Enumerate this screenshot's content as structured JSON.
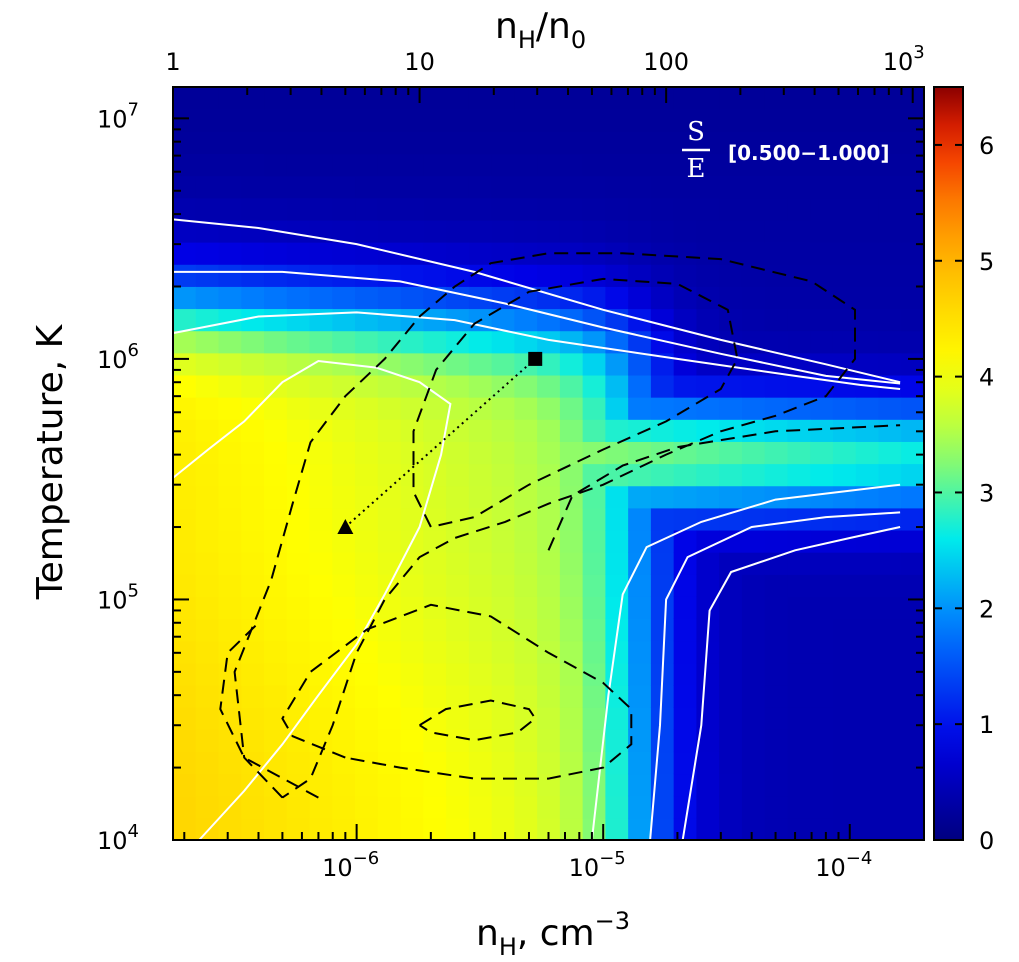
{
  "chart_data": {
    "type": "heatmap",
    "title": "",
    "xlabel_base": "n",
    "xlabel_sub": "H",
    "xlabel_tail": ",  cm",
    "xlabel_sup": "−3",
    "ylabel": "Temperature, K",
    "top_label": {
      "a": "n",
      "a_sub": "H",
      "slash": "/",
      "b": "n",
      "b_sub": "0"
    },
    "panel_label": {
      "num": "S",
      "den": "E",
      "range": "[0.500−1.000]"
    },
    "x_scale": "log",
    "y_scale": "log",
    "xlim": [
      1.8e-07,
      0.0002
    ],
    "ylim": [
      10000.0,
      13500000.0
    ],
    "x_ticks": [
      {
        "value": 1e-06,
        "base": "10",
        "exp": "−6"
      },
      {
        "value": 1e-05,
        "base": "10",
        "exp": "−5"
      },
      {
        "value": 0.0001,
        "base": "10",
        "exp": "−4"
      }
    ],
    "y_ticks": [
      {
        "value": 10000.0,
        "base": "10",
        "exp": "4"
      },
      {
        "value": 100000.0,
        "base": "10",
        "exp": "5"
      },
      {
        "value": 1000000.0,
        "base": "10",
        "exp": "6"
      },
      {
        "value": 10000000.0,
        "base": "10",
        "exp": "7"
      }
    ],
    "top_ticks": [
      {
        "value": 1.8e-07,
        "base": "1",
        "exp": ""
      },
      {
        "value": 1.8e-06,
        "base": "10",
        "exp": ""
      },
      {
        "value": 1.8e-05,
        "base": "100",
        "exp": ""
      },
      {
        "value": 0.00018,
        "base": "10",
        "exp": "3"
      }
    ],
    "colorbar": {
      "min": 0,
      "max": 6.5,
      "ticks": [
        "0",
        "1",
        "2",
        "3",
        "4",
        "5",
        "6"
      ]
    },
    "grid": false,
    "markers": [
      {
        "shape": "triangle",
        "x": 9e-07,
        "y": 200000.0
      },
      {
        "shape": "square",
        "x": 5.3e-06,
        "y": 1000000.0
      }
    ],
    "contours_white": [
      [
        [
          1.8e-07,
          320000.0
        ],
        [
          2.5e-07,
          420000.0
        ],
        [
          3.5e-07,
          550000.0
        ],
        [
          5e-07,
          800000.0
        ],
        [
          7e-07,
          980000.0
        ],
        [
          1.2e-06,
          920000.0
        ],
        [
          1.8e-06,
          800000.0
        ],
        [
          2.4e-06,
          650000.0
        ],
        [
          2.2e-06,
          400000.0
        ],
        [
          1.8e-06,
          200000.0
        ],
        [
          1.3e-06,
          105000.0
        ],
        [
          1e-06,
          65000.0
        ],
        [
          7e-07,
          40000.0
        ],
        [
          5e-07,
          25000.0
        ],
        [
          3.5e-07,
          16000.0
        ],
        [
          2.3e-07,
          10000.0
        ]
      ],
      [
        [
          1.8e-07,
          1280000.0
        ],
        [
          4e-07,
          1500000.0
        ],
        [
          1e-06,
          1560000.0
        ],
        [
          2.5e-06,
          1450000.0
        ],
        [
          6e-06,
          1200000.0
        ],
        [
          2e-05,
          1000000.0
        ],
        [
          6e-05,
          850000.0
        ],
        [
          0.00011,
          780000.0
        ],
        [
          0.00016,
          750000.0
        ]
      ],
      [
        [
          1.8e-07,
          2300000.0
        ],
        [
          5e-07,
          2300000.0
        ],
        [
          1.5e-06,
          2100000.0
        ],
        [
          4e-06,
          1700000.0
        ],
        [
          1e-05,
          1350000.0
        ],
        [
          3e-05,
          1050000.0
        ],
        [
          8e-05,
          850000.0
        ],
        [
          0.00016,
          790000.0
        ]
      ],
      [
        [
          1.8e-07,
          3800000.0
        ],
        [
          4e-07,
          3500000.0
        ],
        [
          1e-06,
          3000000.0
        ],
        [
          3e-06,
          2300000.0
        ],
        [
          1e-05,
          1600000.0
        ],
        [
          3e-05,
          1200000.0
        ],
        [
          8e-05,
          950000.0
        ],
        [
          0.00016,
          800000.0
        ]
      ],
      [
        [
          9e-06,
          10000.0
        ],
        [
          1.05e-05,
          40000.0
        ],
        [
          1.2e-05,
          105000.0
        ],
        [
          1.5e-05,
          165000.0
        ],
        [
          2.5e-05,
          210000.0
        ],
        [
          5e-05,
          260000.0
        ],
        [
          0.00016,
          300000.0
        ]
      ],
      [
        [
          1.55e-05,
          10000.0
        ],
        [
          1.7e-05,
          30000.0
        ],
        [
          1.8e-05,
          100000.0
        ],
        [
          2.2e-05,
          150000.0
        ],
        [
          4e-05,
          200000.0
        ],
        [
          8e-05,
          220000.0
        ],
        [
          0.00016,
          230000.0
        ]
      ],
      [
        [
          2.1e-05,
          10000.0
        ],
        [
          2.5e-05,
          30000.0
        ],
        [
          2.7e-05,
          90000.0
        ],
        [
          3.3e-05,
          130000.0
        ],
        [
          6e-05,
          160000.0
        ],
        [
          0.0001,
          180000.0
        ],
        [
          0.00016,
          200000.0
        ]
      ]
    ],
    "contours_dashed": [
      [
        [
          5e-07,
          15000.0
        ],
        [
          3.5e-07,
          22000.0
        ],
        [
          3.2e-07,
          50000.0
        ],
        [
          4.5e-07,
          120000.0
        ],
        [
          5.5e-07,
          250000.0
        ],
        [
          6.5e-07,
          450000.0
        ],
        [
          9e-07,
          700000.0
        ],
        [
          1.3e-06,
          1000000.0
        ],
        [
          1.8e-06,
          1500000.0
        ],
        [
          2.5e-06,
          2000000.0
        ],
        [
          3.5e-06,
          2500000.0
        ],
        [
          6e-06,
          2750000.0
        ],
        [
          1.2e-05,
          2750000.0
        ],
        [
          3e-05,
          2600000.0
        ],
        [
          7e-05,
          2100000.0
        ],
        [
          0.000105,
          1600000.0
        ],
        [
          0.000105,
          1000000.0
        ],
        [
          8e-05,
          700000.0
        ],
        [
          5e-05,
          580000.0
        ],
        [
          3e-05,
          500000.0
        ],
        [
          1.8e-05,
          400000.0
        ],
        [
          1e-05,
          300000.0
        ],
        [
          6e-06,
          250000.0
        ],
        [
          4e-06,
          210000.0
        ],
        [
          2.5e-06,
          180000.0
        ],
        [
          1.8e-06,
          150000.0
        ],
        [
          1.3e-06,
          100000.0
        ],
        [
          1e-06,
          60000.0
        ],
        [
          8e-07,
          30000.0
        ],
        [
          6.5e-07,
          18000.0
        ],
        [
          5e-07,
          15000.0
        ]
      ],
      [
        [
          2e-06,
          200000.0
        ],
        [
          1.7e-06,
          280000.0
        ],
        [
          1.7e-06,
          500000.0
        ],
        [
          2.1e-06,
          900000.0
        ],
        [
          3e-06,
          1400000.0
        ],
        [
          5e-06,
          1900000.0
        ],
        [
          1e-05,
          2150000.0
        ],
        [
          2e-05,
          2050000.0
        ],
        [
          3.2e-05,
          1600000.0
        ],
        [
          3.5e-05,
          1000000.0
        ],
        [
          3e-05,
          750000.0
        ],
        [
          1.8e-05,
          550000.0
        ],
        [
          1e-05,
          420000.0
        ],
        [
          5e-06,
          300000.0
        ],
        [
          3e-06,
          220000.0
        ],
        [
          2e-06,
          200000.0
        ]
      ],
      [
        [
          6e-06,
          160000.0
        ],
        [
          7.5e-06,
          270000.0
        ],
        [
          1.2e-05,
          360000.0
        ],
        [
          2e-05,
          430000.0
        ],
        [
          5e-05,
          500000.0
        ],
        [
          0.00016,
          530000.0
        ]
      ],
      [
        [
          7e-07,
          15000.0
        ],
        [
          3.5e-07,
          22000.0
        ],
        [
          2.8e-07,
          35000.0
        ],
        [
          3e-07,
          60000.0
        ],
        [
          4e-07,
          80000.0
        ]
      ],
      [
        [
          9e-07,
          22000.0
        ],
        [
          5.5e-07,
          27000.0
        ],
        [
          5e-07,
          32000.0
        ],
        [
          6.5e-07,
          50000.0
        ],
        [
          1.1e-06,
          75000.0
        ],
        [
          2e-06,
          95000.0
        ],
        [
          3.5e-06,
          85000.0
        ],
        [
          6e-06,
          60000.0
        ],
        [
          1e-05,
          45000.0
        ],
        [
          1.3e-05,
          35000.0
        ],
        [
          1.3e-05,
          25000.0
        ],
        [
          1e-05,
          20000.0
        ],
        [
          6e-06,
          18000.0
        ],
        [
          3e-06,
          18000.0
        ],
        [
          1.5e-06,
          20000.0
        ],
        [
          9e-07,
          22000.0
        ]
      ],
      [
        [
          1.8e-06,
          30000.0
        ],
        [
          2.3e-06,
          35000.0
        ],
        [
          3.5e-06,
          38000.0
        ],
        [
          5e-06,
          35000.0
        ],
        [
          5.3e-06,
          32000.0
        ],
        [
          4.5e-06,
          28000.0
        ],
        [
          3e-06,
          26000.0
        ],
        [
          2e-06,
          28000.0
        ],
        [
          1.8e-06,
          30000.0
        ]
      ]
    ]
  }
}
